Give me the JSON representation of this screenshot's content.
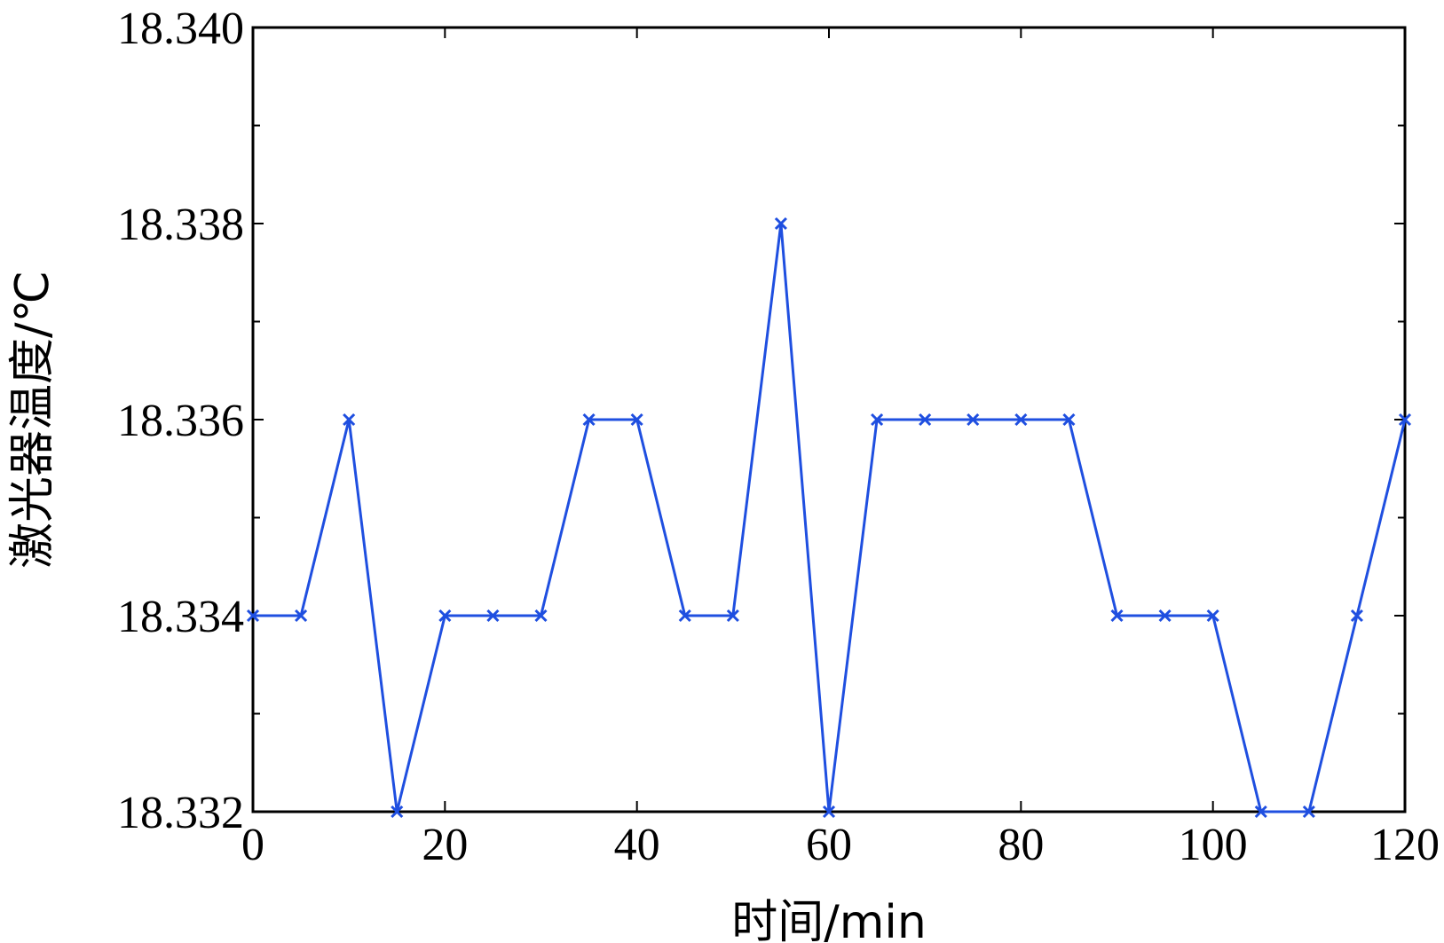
{
  "chart_data": {
    "type": "line",
    "title": "",
    "xlabel": "时间/min",
    "ylabel": "激光器温度/℃",
    "xlim": [
      0,
      120
    ],
    "ylim": [
      18.332,
      18.34
    ],
    "x_ticks": [
      "0",
      "20",
      "40",
      "60",
      "80",
      "100",
      "120"
    ],
    "y_ticks": [
      "18.332",
      "18.334",
      "18.336",
      "18.338",
      "18.340"
    ],
    "grid": false,
    "series": [
      {
        "color": "#1f4fe0",
        "marker": "x",
        "x": [
          0,
          5,
          10,
          15,
          20,
          25,
          30,
          35,
          40,
          45,
          50,
          55,
          60,
          65,
          70,
          75,
          80,
          85,
          90,
          95,
          100,
          105,
          110,
          115,
          120
        ],
        "values": [
          18.334,
          18.334,
          18.336,
          18.332,
          18.334,
          18.334,
          18.334,
          18.336,
          18.336,
          18.334,
          18.334,
          18.338,
          18.332,
          18.336,
          18.336,
          18.336,
          18.336,
          18.336,
          18.334,
          18.334,
          18.334,
          18.332,
          18.332,
          18.334,
          18.336
        ]
      }
    ]
  }
}
